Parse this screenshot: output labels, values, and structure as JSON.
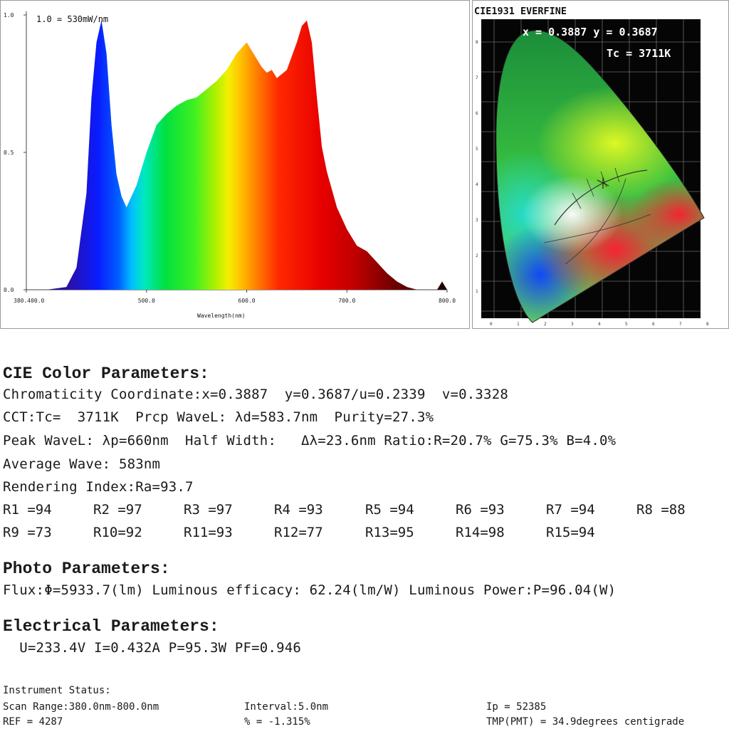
{
  "spectrum": {
    "scale_note": "1.0 = 530mW/nm",
    "y_ticks": [
      "1.0",
      "0.5",
      "0.0"
    ],
    "x_ticks": [
      "380.400.0",
      "500.0",
      "600.0",
      "700.0",
      "800.0"
    ],
    "xlabel": "Wavelength(nm)"
  },
  "chart_data": {
    "type": "area",
    "xlabel": "Wavelength(nm)",
    "ylabel": "",
    "xlim": [
      380,
      800
    ],
    "ylim": [
      0,
      1
    ],
    "x": [
      380,
      400,
      420,
      430,
      440,
      445,
      450,
      455,
      460,
      465,
      470,
      475,
      480,
      490,
      500,
      510,
      520,
      530,
      540,
      550,
      560,
      570,
      580,
      590,
      595,
      600,
      605,
      610,
      615,
      620,
      625,
      630,
      640,
      650,
      655,
      660,
      665,
      670,
      675,
      680,
      690,
      700,
      710,
      720,
      730,
      740,
      750,
      760,
      770,
      780,
      790,
      795,
      800
    ],
    "values": [
      0.0,
      0.0,
      0.01,
      0.08,
      0.35,
      0.7,
      0.9,
      0.98,
      0.86,
      0.6,
      0.42,
      0.34,
      0.3,
      0.38,
      0.5,
      0.6,
      0.64,
      0.67,
      0.69,
      0.7,
      0.73,
      0.76,
      0.8,
      0.86,
      0.88,
      0.9,
      0.87,
      0.84,
      0.81,
      0.79,
      0.8,
      0.77,
      0.8,
      0.9,
      0.96,
      0.98,
      0.9,
      0.7,
      0.52,
      0.43,
      0.3,
      0.22,
      0.16,
      0.14,
      0.1,
      0.06,
      0.03,
      0.01,
      0.0,
      0.0,
      0.0,
      0.03,
      0.0
    ]
  },
  "cie": {
    "title": "CIE1931 EVERFINE",
    "coords": "x = 0.3887  y = 0.3687",
    "tc": "Tc = 3711K",
    "x_ticks": [
      "0",
      "1",
      "2",
      "3",
      "4",
      "5",
      "6",
      "7",
      "8"
    ],
    "y_ticks": [
      "8",
      "7",
      "6",
      "5",
      "4",
      "3",
      "2",
      "1"
    ]
  },
  "cie_params": {
    "heading": "CIE Color Parameters:",
    "chromaticity": "Chromaticity Coordinate:x=0.3887  y=0.3687/u=0.2339  v=0.3328",
    "cct": "CCT:Tc=  3711K  Prcp WaveL: λd=583.7nm  Purity=27.3%",
    "peak": "Peak WaveL: λp=660nm  Half Width:   Δλ=23.6nm Ratio:R=20.7% G=75.3% B=4.0%",
    "average": "Average Wave: 583nm",
    "rendering": "Rendering Index:Ra=93.7",
    "r_values": [
      "R1 =94",
      "R2 =97",
      "R3 =97",
      "R4 =93",
      "R5 =94",
      "R6 =93",
      "R7 =94",
      "R8 =88",
      "R9 =73",
      "R10=92",
      "R11=93",
      "R12=77",
      "R13=95",
      "R14=98",
      "R15=94"
    ]
  },
  "photo_params": {
    "heading": "Photo Parameters:",
    "flux": "Flux:Φ=5933.7(lm) Luminous efficacy: 62.24(lm/W) Luminous Power:P=96.04(W)"
  },
  "electrical_params": {
    "heading": "Electrical Parameters:",
    "values": "  U=233.4V I=0.432A P=95.3W PF=0.946"
  },
  "instrument": {
    "label": "Instrument Status:",
    "scan_range": "Scan Range:380.0nm-800.0nm",
    "interval": "Interval:5.0nm",
    "ip": "Ip = 52385",
    "ref": "REF = 4287",
    "pct": "% = -1.315%",
    "tmp": "TMP(PMT) = 34.9degrees centigrade"
  }
}
